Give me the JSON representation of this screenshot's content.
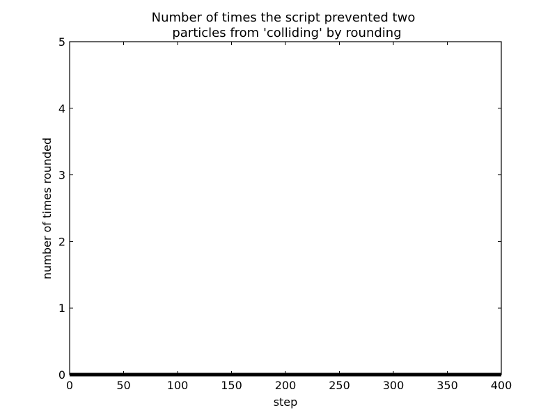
{
  "chart_data": {
    "type": "line",
    "title": [
      "Number of times the script prevented two",
      "particles from 'colliding' by rounding"
    ],
    "xlabel": "step",
    "ylabel": "number of times rounded",
    "xlim": [
      0,
      400
    ],
    "ylim": [
      0,
      5
    ],
    "xticks": [
      0,
      50,
      100,
      150,
      200,
      250,
      300,
      350,
      400
    ],
    "yticks": [
      0,
      1,
      2,
      3,
      4,
      5
    ],
    "grid": false,
    "series": [
      {
        "color": "#000000",
        "x": [
          0,
          400
        ],
        "values": [
          0,
          0
        ]
      }
    ]
  }
}
